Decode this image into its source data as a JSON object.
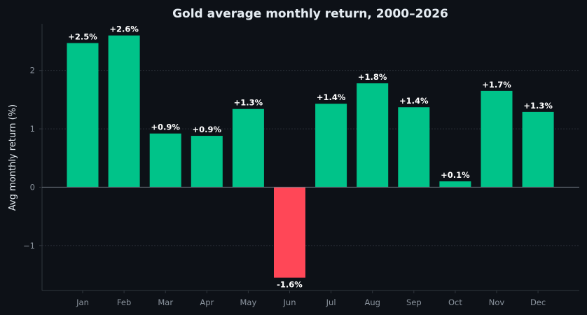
{
  "chart_data": {
    "type": "bar",
    "title": "Gold average monthly return, 2000–2026",
    "xlabel": "",
    "ylabel": "Avg monthly return (%)",
    "categories": [
      "Jan",
      "Feb",
      "Mar",
      "Apr",
      "May",
      "Jun",
      "Jul",
      "Aug",
      "Sep",
      "Oct",
      "Nov",
      "Dec"
    ],
    "values": [
      2.47,
      2.6,
      0.92,
      0.88,
      1.34,
      -1.55,
      1.43,
      1.78,
      1.37,
      0.1,
      1.65,
      1.29
    ],
    "data_labels": [
      "+2.5%",
      "+2.6%",
      "+0.9%",
      "+0.9%",
      "+1.3%",
      "-1.6%",
      "+1.4%",
      "+1.8%",
      "+1.4%",
      "+0.1%",
      "+1.7%",
      "+1.3%"
    ],
    "ylim": [
      -1.77,
      2.8
    ],
    "yticks": [
      -1,
      0,
      1,
      2
    ],
    "ytick_labels": [
      "−1",
      "0",
      "1",
      "2"
    ],
    "grid": true,
    "legend": "none",
    "colors": {
      "background": "#0d1117",
      "positive": "#00c389",
      "negative": "#ff4757",
      "text": "#e6edf3",
      "tick": "#8b949e",
      "axis": "#30363d",
      "zero_line": "#6e7681"
    }
  }
}
